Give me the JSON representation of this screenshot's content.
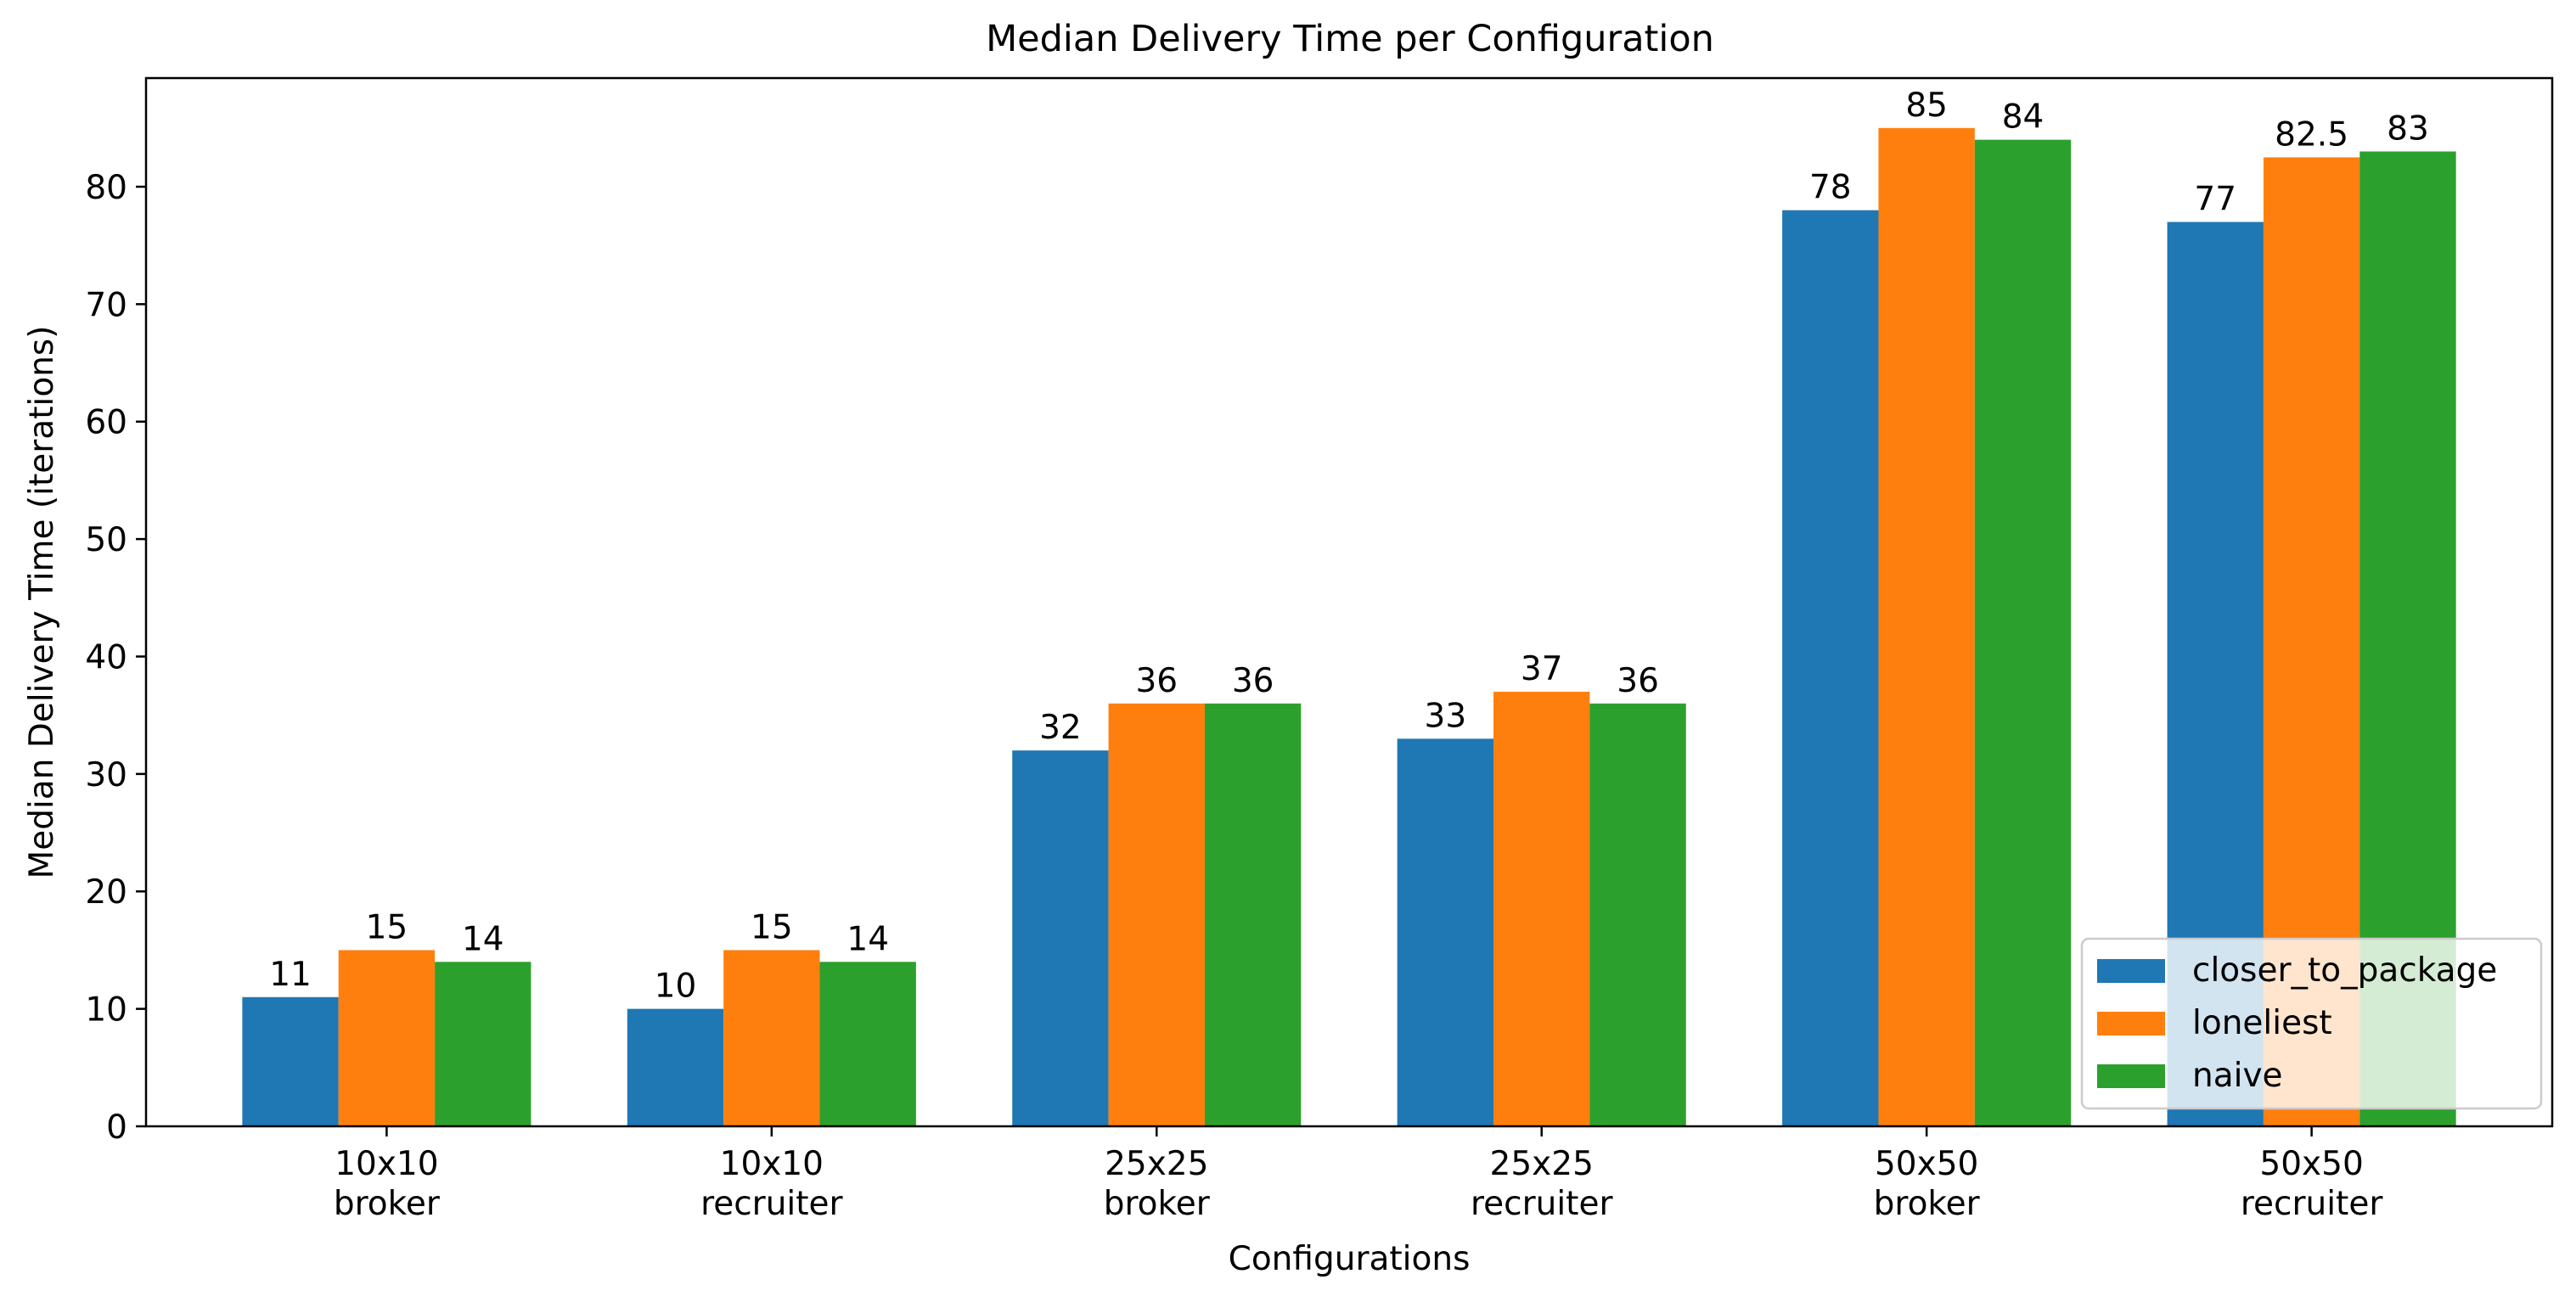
{
  "chart_data": {
    "type": "bar",
    "title": "Median Delivery Time per Configuration",
    "xlabel": "Configurations",
    "ylabel": "Median Delivery Time (iterations)",
    "categories": [
      [
        "10x10",
        "broker"
      ],
      [
        "10x10",
        "recruiter"
      ],
      [
        "25x25",
        "broker"
      ],
      [
        "25x25",
        "recruiter"
      ],
      [
        "50x50",
        "broker"
      ],
      [
        "50x50",
        "recruiter"
      ]
    ],
    "series": [
      {
        "name": "closer_to_package",
        "color": "#1f77b4",
        "values": [
          11,
          10,
          32,
          33,
          78,
          77
        ],
        "labels": [
          "11",
          "10",
          "32",
          "33",
          "78",
          "77"
        ]
      },
      {
        "name": "loneliest",
        "color": "#ff7f0e",
        "values": [
          15,
          15,
          36,
          37,
          85,
          82.5
        ],
        "labels": [
          "15",
          "15",
          "36",
          "37",
          "85",
          "82.5"
        ]
      },
      {
        "name": "naive",
        "color": "#2ca02c",
        "values": [
          14,
          14,
          36,
          36,
          84,
          83
        ],
        "labels": [
          "14",
          "14",
          "36",
          "36",
          "84",
          "83"
        ]
      }
    ],
    "ylim": [
      0,
      89.25
    ],
    "yticks": [
      0,
      10,
      20,
      30,
      40,
      50,
      60,
      70,
      80
    ],
    "grid": false,
    "legend_position": "lower right"
  }
}
